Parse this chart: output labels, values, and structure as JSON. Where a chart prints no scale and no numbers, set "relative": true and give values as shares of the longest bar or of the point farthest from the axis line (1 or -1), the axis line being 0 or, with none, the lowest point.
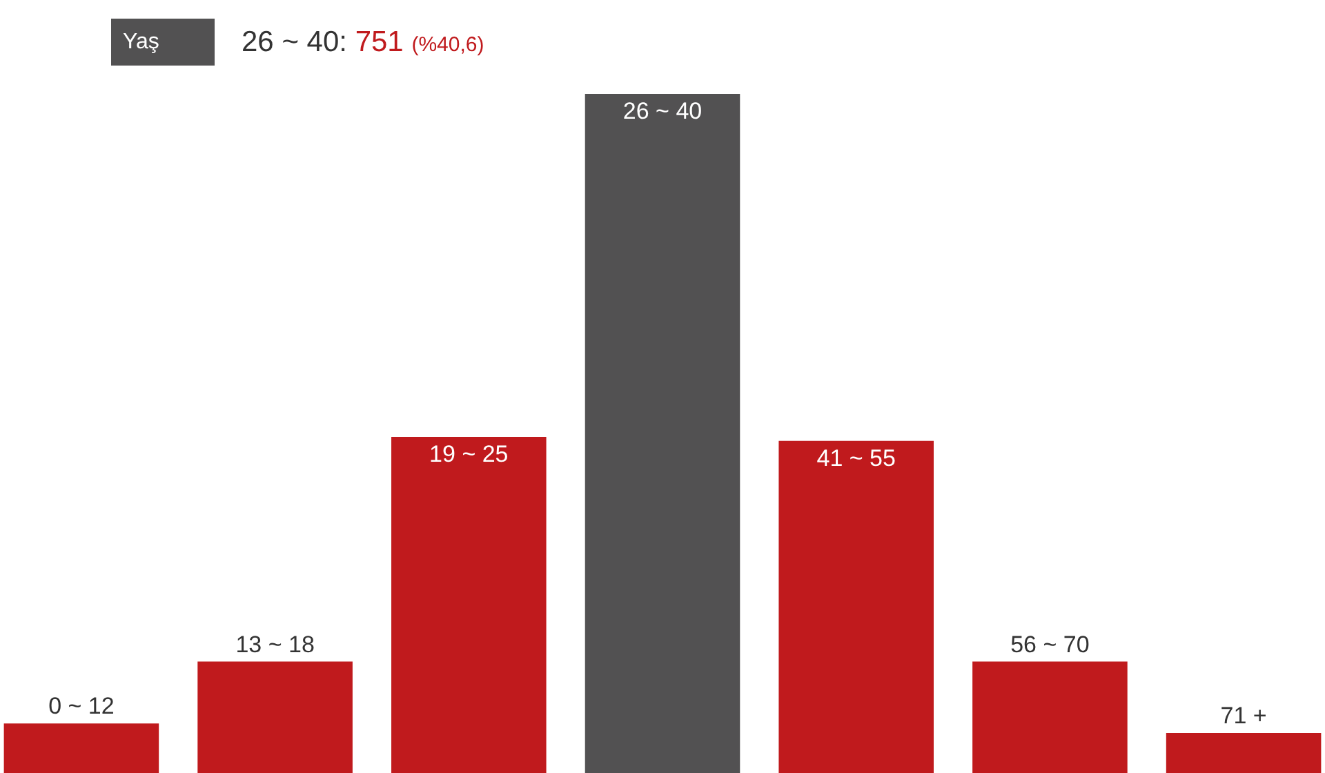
{
  "chart_data": {
    "type": "bar",
    "title": "Yaş",
    "relative": true,
    "categories": [
      "0 ~ 12",
      "13 ~ 18",
      "19 ~ 25",
      "26 ~ 40",
      "41 ~ 55",
      "56 ~ 70",
      "71 +"
    ],
    "values": [
      0.073,
      0.164,
      0.495,
      1,
      0.489,
      0.164,
      0.059
    ],
    "colors": [
      "#c01a1d",
      "#c01a1d",
      "#c01a1d",
      "#525152",
      "#c01a1d",
      "#c01a1d",
      "#c01a1d"
    ],
    "annotations": [
      "26 ~ 40: 751 (%40,6)"
    ],
    "legend": false
  }
}
